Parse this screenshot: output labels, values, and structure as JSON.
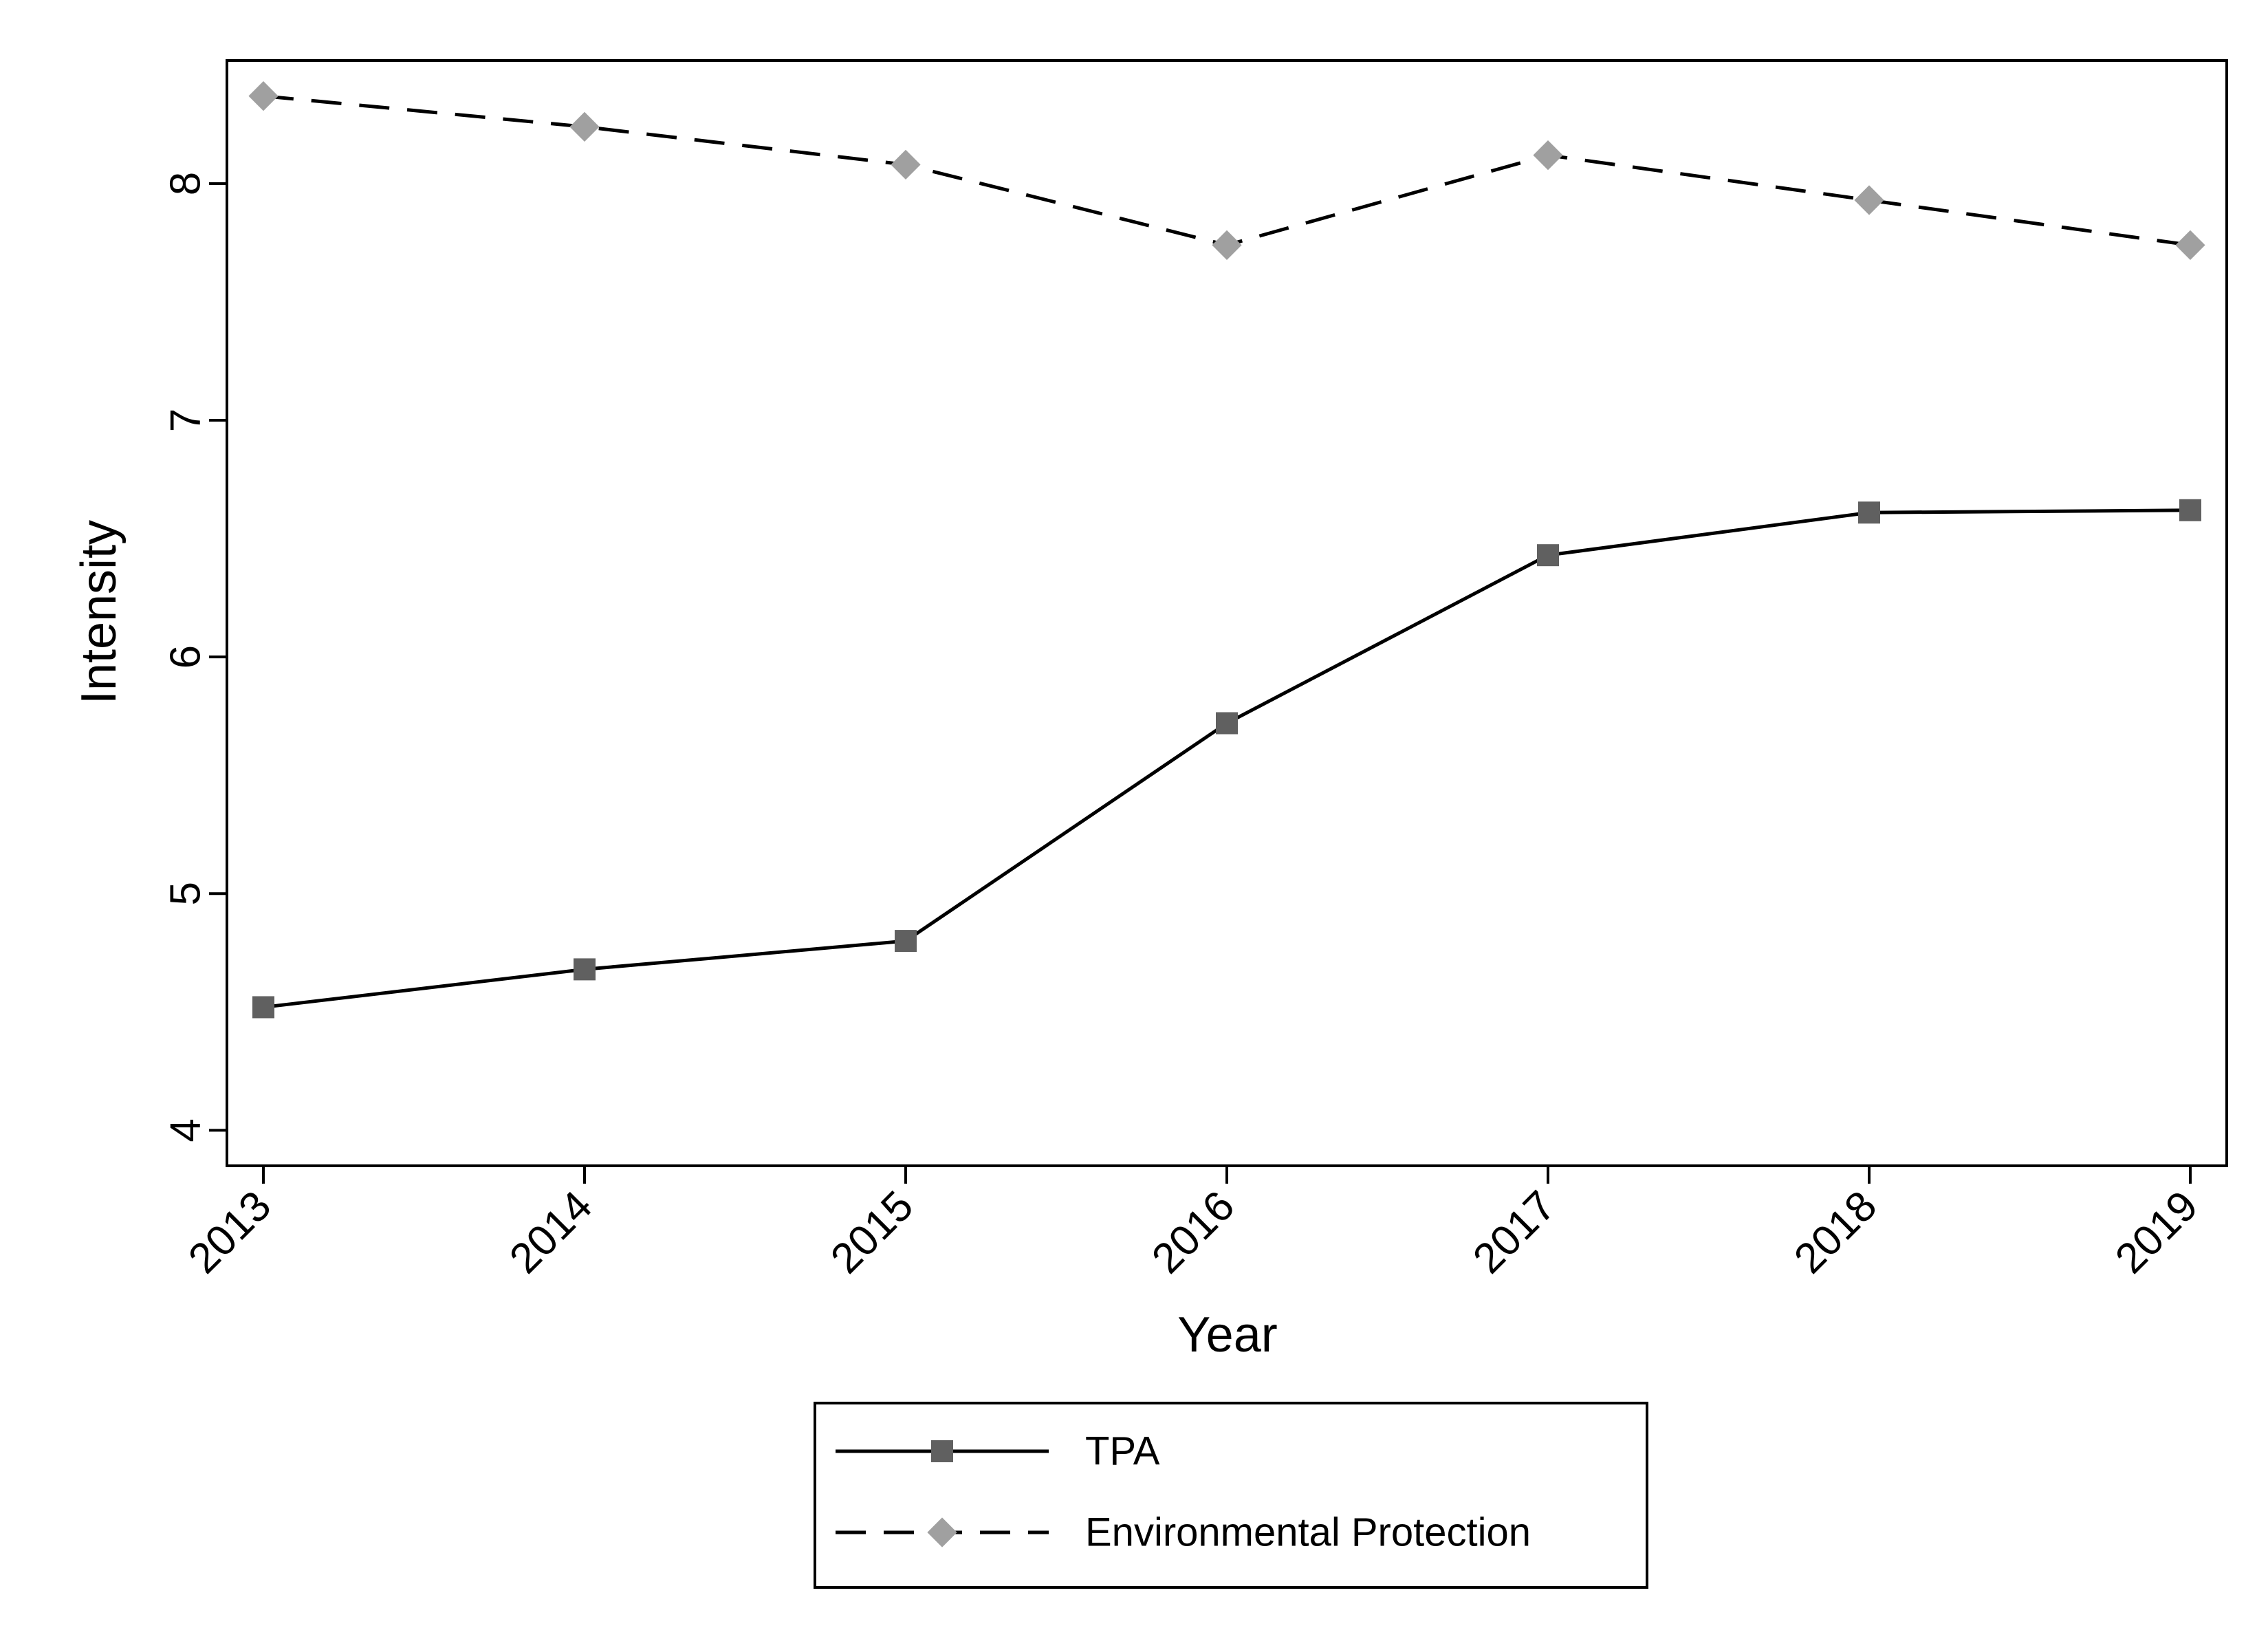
{
  "chart_data": {
    "type": "line",
    "xlabel": "Year",
    "ylabel": "Intensity",
    "x": [
      2013,
      2014,
      2015,
      2016,
      2017,
      2018,
      2019
    ],
    "xticks": [
      "2013",
      "2014",
      "2015",
      "2016",
      "2017",
      "2018",
      "2019"
    ],
    "ylim": [
      3.85,
      8.52
    ],
    "yticks": [
      "4",
      "5",
      "6",
      "7",
      "8"
    ],
    "grid": false,
    "legend_position": "bottom",
    "series": [
      {
        "name": "TPA",
        "values": [
          4.52,
          4.68,
          4.8,
          5.72,
          6.43,
          6.61,
          6.62
        ],
        "line_style": "solid",
        "marker": "square",
        "line_color": "#000000",
        "marker_color": "#606060"
      },
      {
        "name": "Environmental Protection",
        "values": [
          8.37,
          8.24,
          8.08,
          7.74,
          8.12,
          7.93,
          7.74
        ],
        "line_style": "dashed",
        "marker": "diamond",
        "line_color": "#000000",
        "marker_color": "#a0a0a0"
      }
    ]
  }
}
